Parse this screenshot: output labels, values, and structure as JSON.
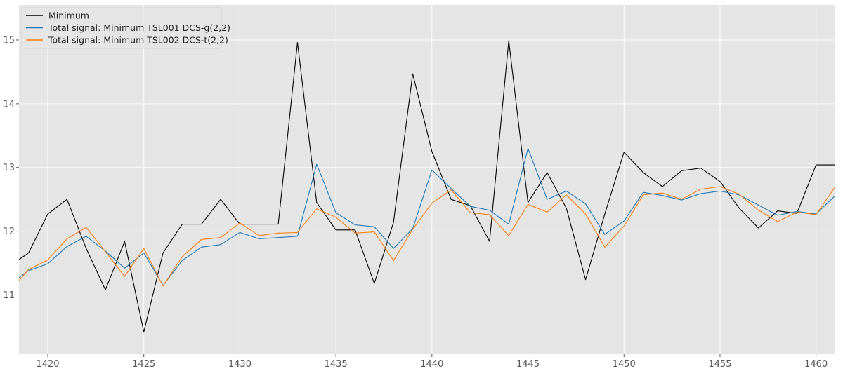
{
  "chart_data": {
    "type": "line",
    "title": "",
    "xlabel": "",
    "ylabel": "",
    "xlim": [
      1418.5,
      1461.0
    ],
    "ylim": [
      10.07,
      15.55
    ],
    "grid": true,
    "legend_position": "top-left",
    "x_ticks": [
      1420,
      1425,
      1430,
      1435,
      1440,
      1445,
      1450,
      1455,
      1460
    ],
    "y_ticks": [
      11,
      12,
      13,
      14,
      15
    ],
    "x": [
      1418,
      1419,
      1420,
      1421,
      1422,
      1423,
      1424,
      1425,
      1426,
      1427,
      1428,
      1429,
      1430,
      1431,
      1432,
      1433,
      1434,
      1435,
      1436,
      1437,
      1438,
      1439,
      1440,
      1441,
      1442,
      1443,
      1444,
      1445,
      1446,
      1447,
      1448,
      1449,
      1450,
      1451,
      1452,
      1453,
      1454,
      1455,
      1456,
      1457,
      1458,
      1459,
      1460,
      1461
    ],
    "series": [
      {
        "name": "Minimum",
        "color": "#000000",
        "values": [
          11.45,
          11.66,
          12.27,
          12.5,
          11.73,
          11.08,
          11.84,
          10.42,
          11.66,
          12.11,
          12.11,
          12.5,
          12.11,
          12.11,
          12.11,
          14.96,
          12.45,
          12.02,
          12.02,
          11.18,
          12.14,
          14.47,
          13.25,
          12.5,
          12.4,
          11.84,
          14.99,
          12.45,
          12.92,
          12.36,
          11.24,
          12.27,
          13.24,
          12.92,
          12.7,
          12.95,
          12.99,
          12.78,
          12.36,
          12.05,
          12.32,
          12.28,
          13.04,
          13.04
        ]
      },
      {
        "name": "Total signal: Minimum TSL001 DCS-g(2,2)",
        "color": "#1f77b4",
        "values": [
          11.16,
          11.38,
          11.49,
          11.76,
          11.92,
          11.69,
          11.42,
          11.66,
          11.15,
          11.54,
          11.75,
          11.79,
          11.98,
          11.88,
          11.9,
          11.92,
          13.05,
          12.29,
          12.1,
          12.07,
          11.73,
          12.04,
          12.96,
          12.67,
          12.39,
          12.33,
          12.11,
          13.3,
          12.5,
          12.63,
          12.43,
          11.95,
          12.16,
          12.61,
          12.56,
          12.49,
          12.59,
          12.63,
          12.57,
          12.41,
          12.25,
          12.31,
          12.27,
          12.56
        ]
      },
      {
        "name": "Total signal: Minimum TSL002 DCS-t(2,2)",
        "color": "#ff7f0e",
        "values": [
          11.04,
          11.4,
          11.55,
          11.88,
          12.06,
          11.68,
          11.29,
          11.73,
          11.14,
          11.6,
          11.87,
          11.9,
          12.13,
          11.93,
          11.97,
          11.98,
          12.35,
          12.22,
          11.97,
          11.99,
          11.54,
          12.03,
          12.44,
          12.65,
          12.29,
          12.26,
          11.93,
          12.42,
          12.3,
          12.57,
          12.27,
          11.75,
          12.08,
          12.57,
          12.6,
          12.5,
          12.66,
          12.7,
          12.58,
          12.33,
          12.15,
          12.3,
          12.26,
          12.7
        ]
      }
    ]
  }
}
